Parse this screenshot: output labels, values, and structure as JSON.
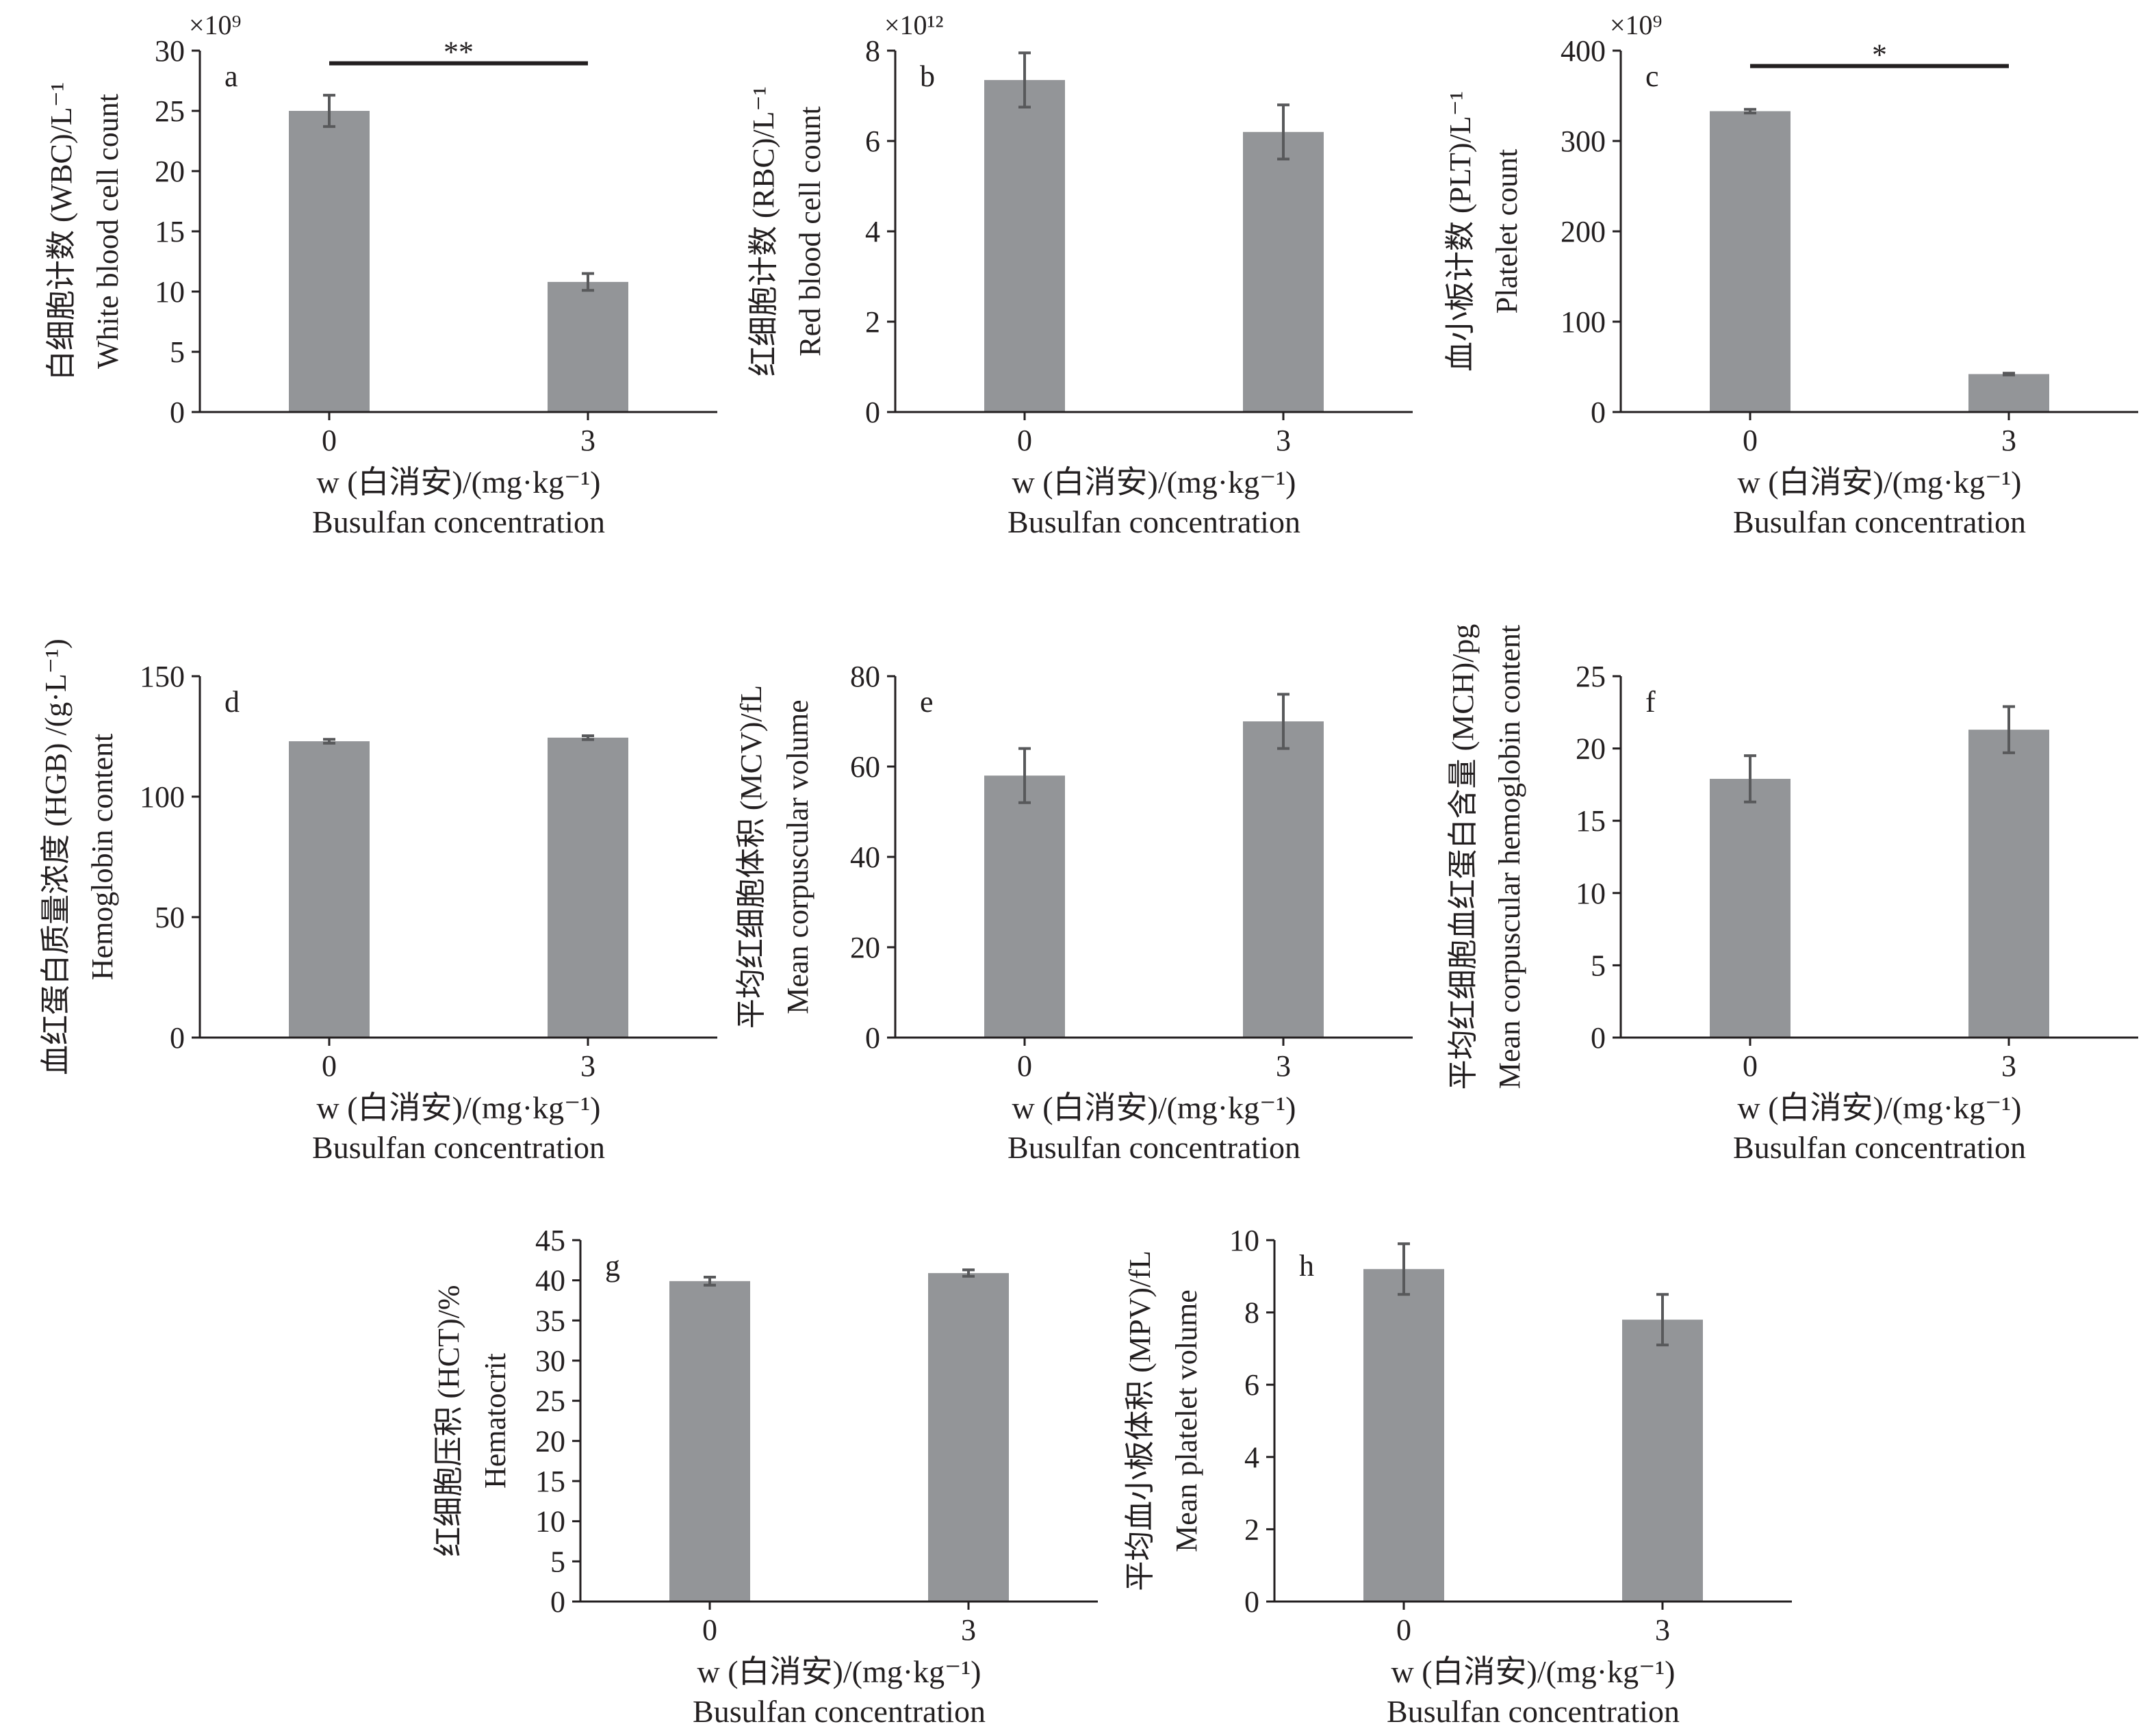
{
  "figure": {
    "x_tick_labels": [
      "0",
      "3"
    ],
    "x_label_cn": "w (白消安)/(mg·kg⁻¹)",
    "x_label_en": "Busulfan concentration",
    "colors": {
      "bar": "#939598",
      "error_bar": "#58595b",
      "axis": "#231f20",
      "text": "#231f20"
    }
  },
  "chart_data": [
    {
      "type": "bar",
      "panel": "a",
      "ylabel_cn": "白细胞计数 (WBC)/L⁻¹",
      "ylabel_en": "White blood cell count",
      "multiplier": "×10⁹",
      "categories": [
        "0",
        "3"
      ],
      "values": [
        25.0,
        10.8
      ],
      "errors": [
        1.3,
        0.7
      ],
      "ylim": [
        0,
        30
      ],
      "yticks": [
        0,
        5,
        10,
        15,
        20,
        25,
        30
      ],
      "significance": "**"
    },
    {
      "type": "bar",
      "panel": "b",
      "ylabel_cn": "红细胞计数 (RBC)/L⁻¹",
      "ylabel_en": "Red blood cell count",
      "multiplier": "×10¹²",
      "categories": [
        "0",
        "3"
      ],
      "values": [
        7.35,
        6.2
      ],
      "errors": [
        0.6,
        0.6
      ],
      "ylim": [
        0,
        8
      ],
      "yticks": [
        0,
        2,
        4,
        6,
        8
      ],
      "significance": ""
    },
    {
      "type": "bar",
      "panel": "c",
      "ylabel_cn": "血小板计数 (PLT)/L⁻¹",
      "ylabel_en": "Platelet count",
      "multiplier": "×10⁹",
      "categories": [
        "0",
        "3"
      ],
      "values": [
        333,
        42
      ],
      "errors": [
        2,
        1
      ],
      "ylim": [
        0,
        400
      ],
      "yticks": [
        0,
        100,
        200,
        300,
        400
      ],
      "significance": "*"
    },
    {
      "type": "bar",
      "panel": "d",
      "ylabel_cn": "血红蛋白质量浓度 (HGB) /(g·L⁻¹)",
      "ylabel_en": "Hemoglobin content",
      "multiplier": "",
      "categories": [
        "0",
        "3"
      ],
      "values": [
        123,
        124.5
      ],
      "errors": [
        0.8,
        0.8
      ],
      "ylim": [
        0,
        150
      ],
      "yticks": [
        0,
        50,
        100,
        150
      ],
      "significance": ""
    },
    {
      "type": "bar",
      "panel": "e",
      "ylabel_cn": "平均红细胞体积 (MCV)/fL",
      "ylabel_en": "Mean corpuscular volume",
      "multiplier": "",
      "categories": [
        "0",
        "3"
      ],
      "values": [
        58,
        70
      ],
      "errors": [
        6,
        6
      ],
      "ylim": [
        0,
        80
      ],
      "yticks": [
        0,
        20,
        40,
        60,
        80
      ],
      "significance": ""
    },
    {
      "type": "bar",
      "panel": "f",
      "ylabel_cn": "平均红细胞血红蛋白含量 (MCH)/pg",
      "ylabel_en": "Mean corpuscular hemoglobin content",
      "multiplier": "",
      "categories": [
        "0",
        "3"
      ],
      "values": [
        17.9,
        21.3
      ],
      "errors": [
        1.6,
        1.6
      ],
      "ylim": [
        0,
        25
      ],
      "yticks": [
        0,
        5,
        10,
        15,
        20,
        25
      ],
      "significance": ""
    },
    {
      "type": "bar",
      "panel": "g",
      "ylabel_cn": "红细胞压积 (HCT)/%",
      "ylabel_en": "Hematocrit",
      "multiplier": "",
      "categories": [
        "0",
        "3"
      ],
      "values": [
        39.9,
        40.9
      ],
      "errors": [
        0.5,
        0.4
      ],
      "ylim": [
        0,
        45
      ],
      "yticks": [
        0,
        5,
        10,
        15,
        20,
        25,
        30,
        35,
        40,
        45
      ],
      "significance": ""
    },
    {
      "type": "bar",
      "panel": "h",
      "ylabel_cn": "平均血小板体积 (MPV)/fL",
      "ylabel_en": "Mean platelet volume",
      "multiplier": "",
      "categories": [
        "0",
        "3"
      ],
      "values": [
        9.2,
        7.8
      ],
      "errors": [
        0.7,
        0.7
      ],
      "ylim": [
        0,
        10
      ],
      "yticks": [
        0,
        2,
        4,
        6,
        8,
        10
      ],
      "significance": ""
    }
  ]
}
